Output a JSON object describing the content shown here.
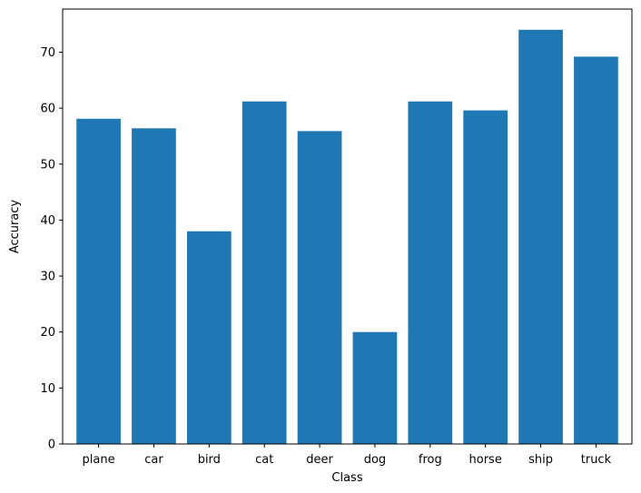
{
  "chart_data": {
    "type": "bar",
    "categories": [
      "plane",
      "car",
      "bird",
      "cat",
      "deer",
      "dog",
      "frog",
      "horse",
      "ship",
      "truck"
    ],
    "values": [
      58.1,
      56.4,
      38.0,
      61.2,
      55.9,
      20.0,
      61.2,
      59.6,
      74.0,
      69.2
    ],
    "xlabel": "Class",
    "ylabel": "Accuracy",
    "ylim": [
      0,
      77.7
    ],
    "yticks": [
      0,
      10,
      20,
      30,
      40,
      50,
      60,
      70
    ],
    "grid": false,
    "bar_color": "#1f77b4"
  }
}
